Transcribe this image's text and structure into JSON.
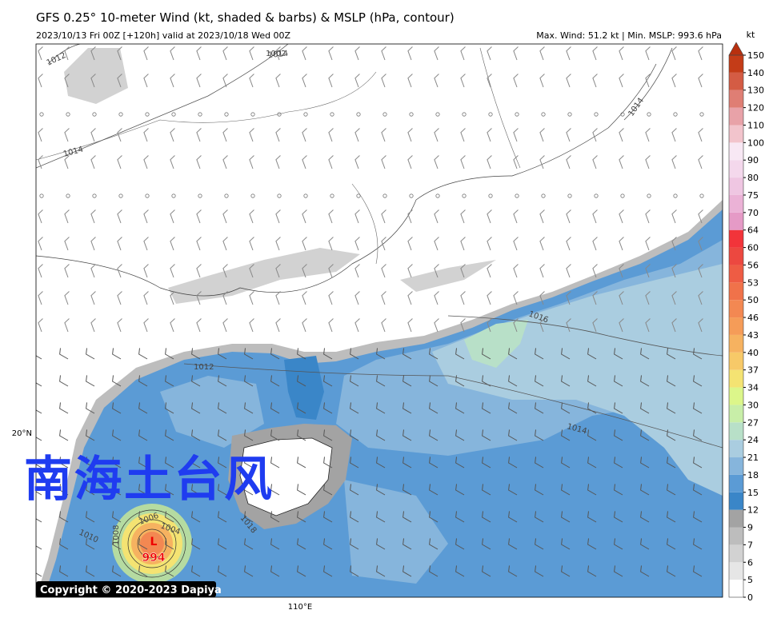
{
  "title": "GFS 0.25° 10-meter Wind (kt, shaded & barbs) & MSLP (hPa, contour)",
  "subtitle_left": "2023/10/13 Fri 00Z [+120h] valid at 2023/10/18 Wed 00Z",
  "subtitle_right": "Max. Wind: 51.2 kt | Min. MSLP: 993.6 hPa",
  "colorbar": {
    "unit": "kt",
    "levels": [
      0,
      5,
      6,
      7,
      9,
      12,
      15,
      18,
      21,
      24,
      27,
      30,
      34,
      37,
      40,
      43,
      46,
      50,
      53,
      56,
      60,
      64,
      70,
      75,
      80,
      90,
      100,
      110,
      120,
      130,
      140,
      150
    ],
    "colors": [
      "#ffffff",
      "#e6e6e6",
      "#d2d2d2",
      "#bdbdbd",
      "#a3a3a3",
      "#3a86c8",
      "#5b9bd5",
      "#86b5dc",
      "#aacde0",
      "#b8e0c8",
      "#c8eea8",
      "#dcf68a",
      "#f4e372",
      "#f7c968",
      "#f6b260",
      "#f59c58",
      "#f38852",
      "#f0724a",
      "#ee5c44",
      "#ec4840",
      "#f2343a",
      "#e59ac6",
      "#ebb2d6",
      "#efc6e2",
      "#f4d8ec",
      "#f8e8f4",
      "#f2c4cc",
      "#e8a2a8",
      "#df7e74",
      "#d45c44",
      "#c43c18"
    ],
    "extend_color": "#b8300f"
  },
  "overlay_text": "南海土台风",
  "low": {
    "letter": "L",
    "value": "994"
  },
  "contour_labels": [
    "1012",
    "1014",
    "1014",
    "1014",
    "1012",
    "1016",
    "1014",
    "1018",
    "1010",
    "1008",
    "1006",
    "1004",
    "1002"
  ],
  "lat_label": "20°N",
  "lon_label": "110°E",
  "copyright": "Copyright © 2020-2023 Dapiya"
}
